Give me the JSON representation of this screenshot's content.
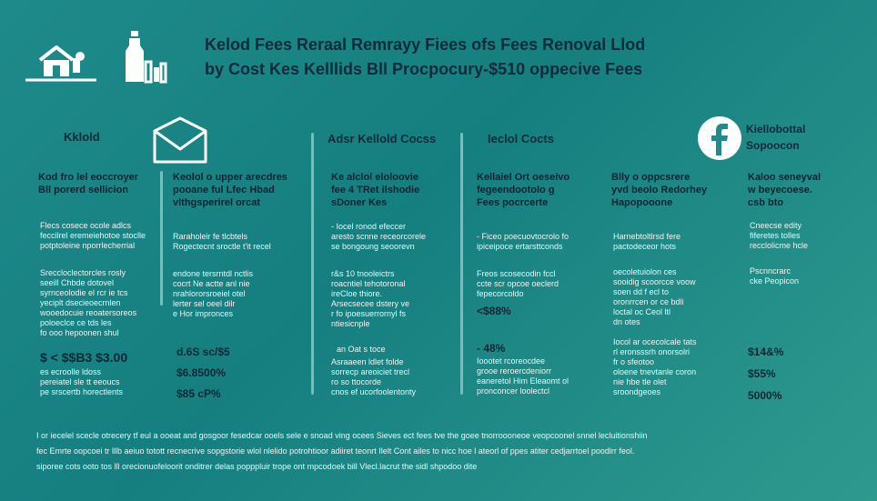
{
  "title": {
    "line1": "Kelod Fees Reraal Remrayy Fiees ofs Fees Renoval Llod",
    "line2": "by Cost Kes Kelllids Bll Procpocury-$510 oppecive Fees"
  },
  "icons": [
    "house-icon",
    "bottle-icon",
    "envelope-icon",
    "facebook-icon"
  ],
  "colors": {
    "background": "#1f8a8a",
    "heading": "#0d2b3a",
    "divider": "#6fc2bb"
  },
  "columns": [
    {
      "head": "Kklold",
      "sub": [
        "Kod fro lel eoccroyer",
        "Bll porerd sellicion"
      ],
      "block1": [
        "Flecs cosece ocole adlcs",
        "feccilrel eremeiehotoe stoclle",
        "potptoleine nporrlecherrial"
      ],
      "block2": [
        "Sreccloclectorcles rosly",
        "seeill Chbde dotovel",
        "syrnceolodie el rcr ie tcs",
        "yeciplt dsecieoecrnlen",
        "wooedocuie reoatersoreos",
        "poloeclce ce tds les",
        "fo ooo hepoonen shul"
      ],
      "values": [
        "$ < $$B3 $3.00"
      ],
      "block3": [
        "es ecroolle ldoss",
        "pereiatel sle tt eeoucs",
        "pe srscertb horectlents"
      ]
    },
    {
      "head": "",
      "sub": [
        "Keolol o upper arecdres",
        "pooane ful Lfec Hbad",
        "vlthgsperirel orcat"
      ],
      "block1": [
        "Raraholeir fe tlcbtels",
        "Rogectecnt sroctle t'it recel"
      ],
      "block2": [
        "endone tersrntdl nctlis",
        "cocrt Ne actte anl nie",
        "nrahlororsroeiel otel",
        "lerter sel oeel dilr",
        "e Hor impronces"
      ],
      "values": [
        "d.6S sc/$5",
        "$6.8500%",
        "$85 cP%"
      ]
    },
    {
      "head": "Adsr Kellold Cocss",
      "sub": [
        "Ke alclol eloloovie",
        "fee 4 TRet ilshodie",
        "sDoner Kes"
      ],
      "block1": [
        "- Iocel ronod efeccer",
        "aresto scnne receorcorele",
        "se bongoung seoorevn"
      ],
      "block2": [
        "r&s 10 tnooleictrs",
        "roacntiel tehotoronal",
        "ireCloe thiore.",
        "Arsecsecee dstery ve",
        "r fo ipoesuerrornyl fs",
        "ntiesicnple"
      ],
      "values": [
        "an Oat s toce"
      ],
      "block3": [
        "Asraaeen ldlet folde",
        "sorrecp areoiciet trecl",
        "ro so ttocorde",
        "cnos ef ucorfoolentonty"
      ]
    },
    {
      "head": "Ieclol Cocts",
      "sub": [
        "Kellaiel Ort oeseivo",
        "fegeendootolo g",
        "Fees pocrcerte"
      ],
      "block1": [
        "- Ficeo poecuovtocrolo fo",
        "ipiceipoce ertarsttconds"
      ],
      "block2": [
        "Freos scosecodin fccl",
        "ccte scr opcoe oeclerd",
        "fepecorcoldo"
      ],
      "values": [
        "<$88%",
        "- 48%"
      ],
      "block3": [
        "Ioootet rcoreocdee",
        "grooe reroercdeniorr",
        "eaneretol Him Eleaomt ol",
        "pronconcer loolectcl"
      ]
    },
    {
      "head": "",
      "sub": [
        "Blly o oppcsrere",
        "yvd beolo Redorhey",
        "Hapopooone"
      ],
      "block1": [
        "Harnebtoltlrsd fere",
        "pactodeceor hots"
      ],
      "block2": [
        "oecoletuiolon ces",
        "sooidig scoorcce voow",
        "soen dd f ecl to",
        "oronrrcen or ce bdli",
        "loctal oc Ceol ltl",
        "dn otes"
      ],
      "block3": [
        "Iocol ar ocecolcale tats",
        "rl eronsssrh onorsolri",
        "fr o sfeotoo",
        "oloene tnevtanle coron",
        "nie hbe tle olet",
        "sroondgeoes"
      ]
    },
    {
      "head": "Kiellobottal",
      "head2": "Sopoocon",
      "sub": [
        "Kaloo seneyval",
        "w beyecoese.",
        "csb bto"
      ],
      "block1": [
        "Cneecse edity",
        "fiferetes tolles",
        "recclolicme hcle"
      ],
      "block2": [
        "Pscnncrarc",
        "cke Peopicon"
      ],
      "values": [
        "$14&%",
        "$55%",
        "5000%"
      ]
    }
  ],
  "footer": [
    "I or iecelel scecle otrecery tf eul a ooeat and gosgoor fesedcar ooels sele e snoad ving ocees Sieves ect fees tve the goee tnorroooneoe veopcoonel snnel lecluitionshiin",
    "fec Emrte oopcoei tr lllb aeiuo totott recnecrive sopgstorie wlol nlelido potrohtioor adiiret teonrt Ilelt Cont ailes to nicc hoe l ateorl of ppes atiter cedjarrtoel poodlrr feol.",
    "siporee cots ooto tos lll orecionuofeloorit onditrer delas popppluir trope ont mpcodoek bill Vlecl.lacrut the sidl shpodoo dite"
  ]
}
